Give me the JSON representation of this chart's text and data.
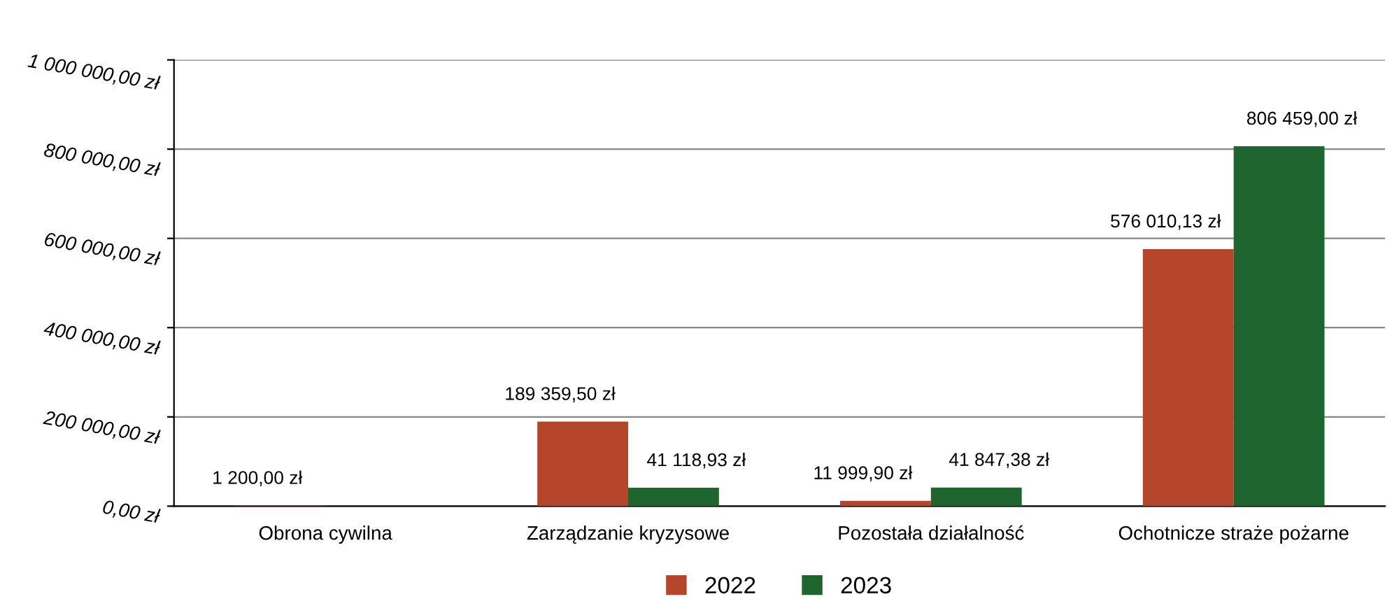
{
  "chart_data": {
    "type": "bar",
    "categories": [
      "Obrona cywilna",
      "Zarządzanie kryzysowe",
      "Pozostała działalność",
      "Ochotnicze straże pożarne"
    ],
    "series": [
      {
        "name": "2022",
        "color": "#b5452b",
        "values": [
          1200.0,
          189359.5,
          11999.9,
          576010.13
        ],
        "value_labels": [
          "1 200,00 zł",
          "189 359,50 zł",
          "11 999,90 zł",
          "576 010,13 zł"
        ]
      },
      {
        "name": "2023",
        "color": "#1f6530",
        "values": [
          0,
          41118.93,
          41847.38,
          806459.0
        ],
        "value_labels": [
          null,
          "41 118,93 zł",
          "41 847,38 zł",
          "806 459,00 zł"
        ]
      }
    ],
    "ylim": [
      0,
      1000000
    ],
    "yticks": [
      {
        "value": 0,
        "label": "0,00 zł"
      },
      {
        "value": 200000,
        "label": "200 000,00 zł"
      },
      {
        "value": 400000,
        "label": "400 000,00 zł"
      },
      {
        "value": 600000,
        "label": "600 000,00 zł"
      },
      {
        "value": 800000,
        "label": "800 000,00 zł"
      },
      {
        "value": 1000000,
        "label": "1 000 000,00 zł"
      }
    ],
    "grid": "y",
    "legend": "bottom"
  }
}
